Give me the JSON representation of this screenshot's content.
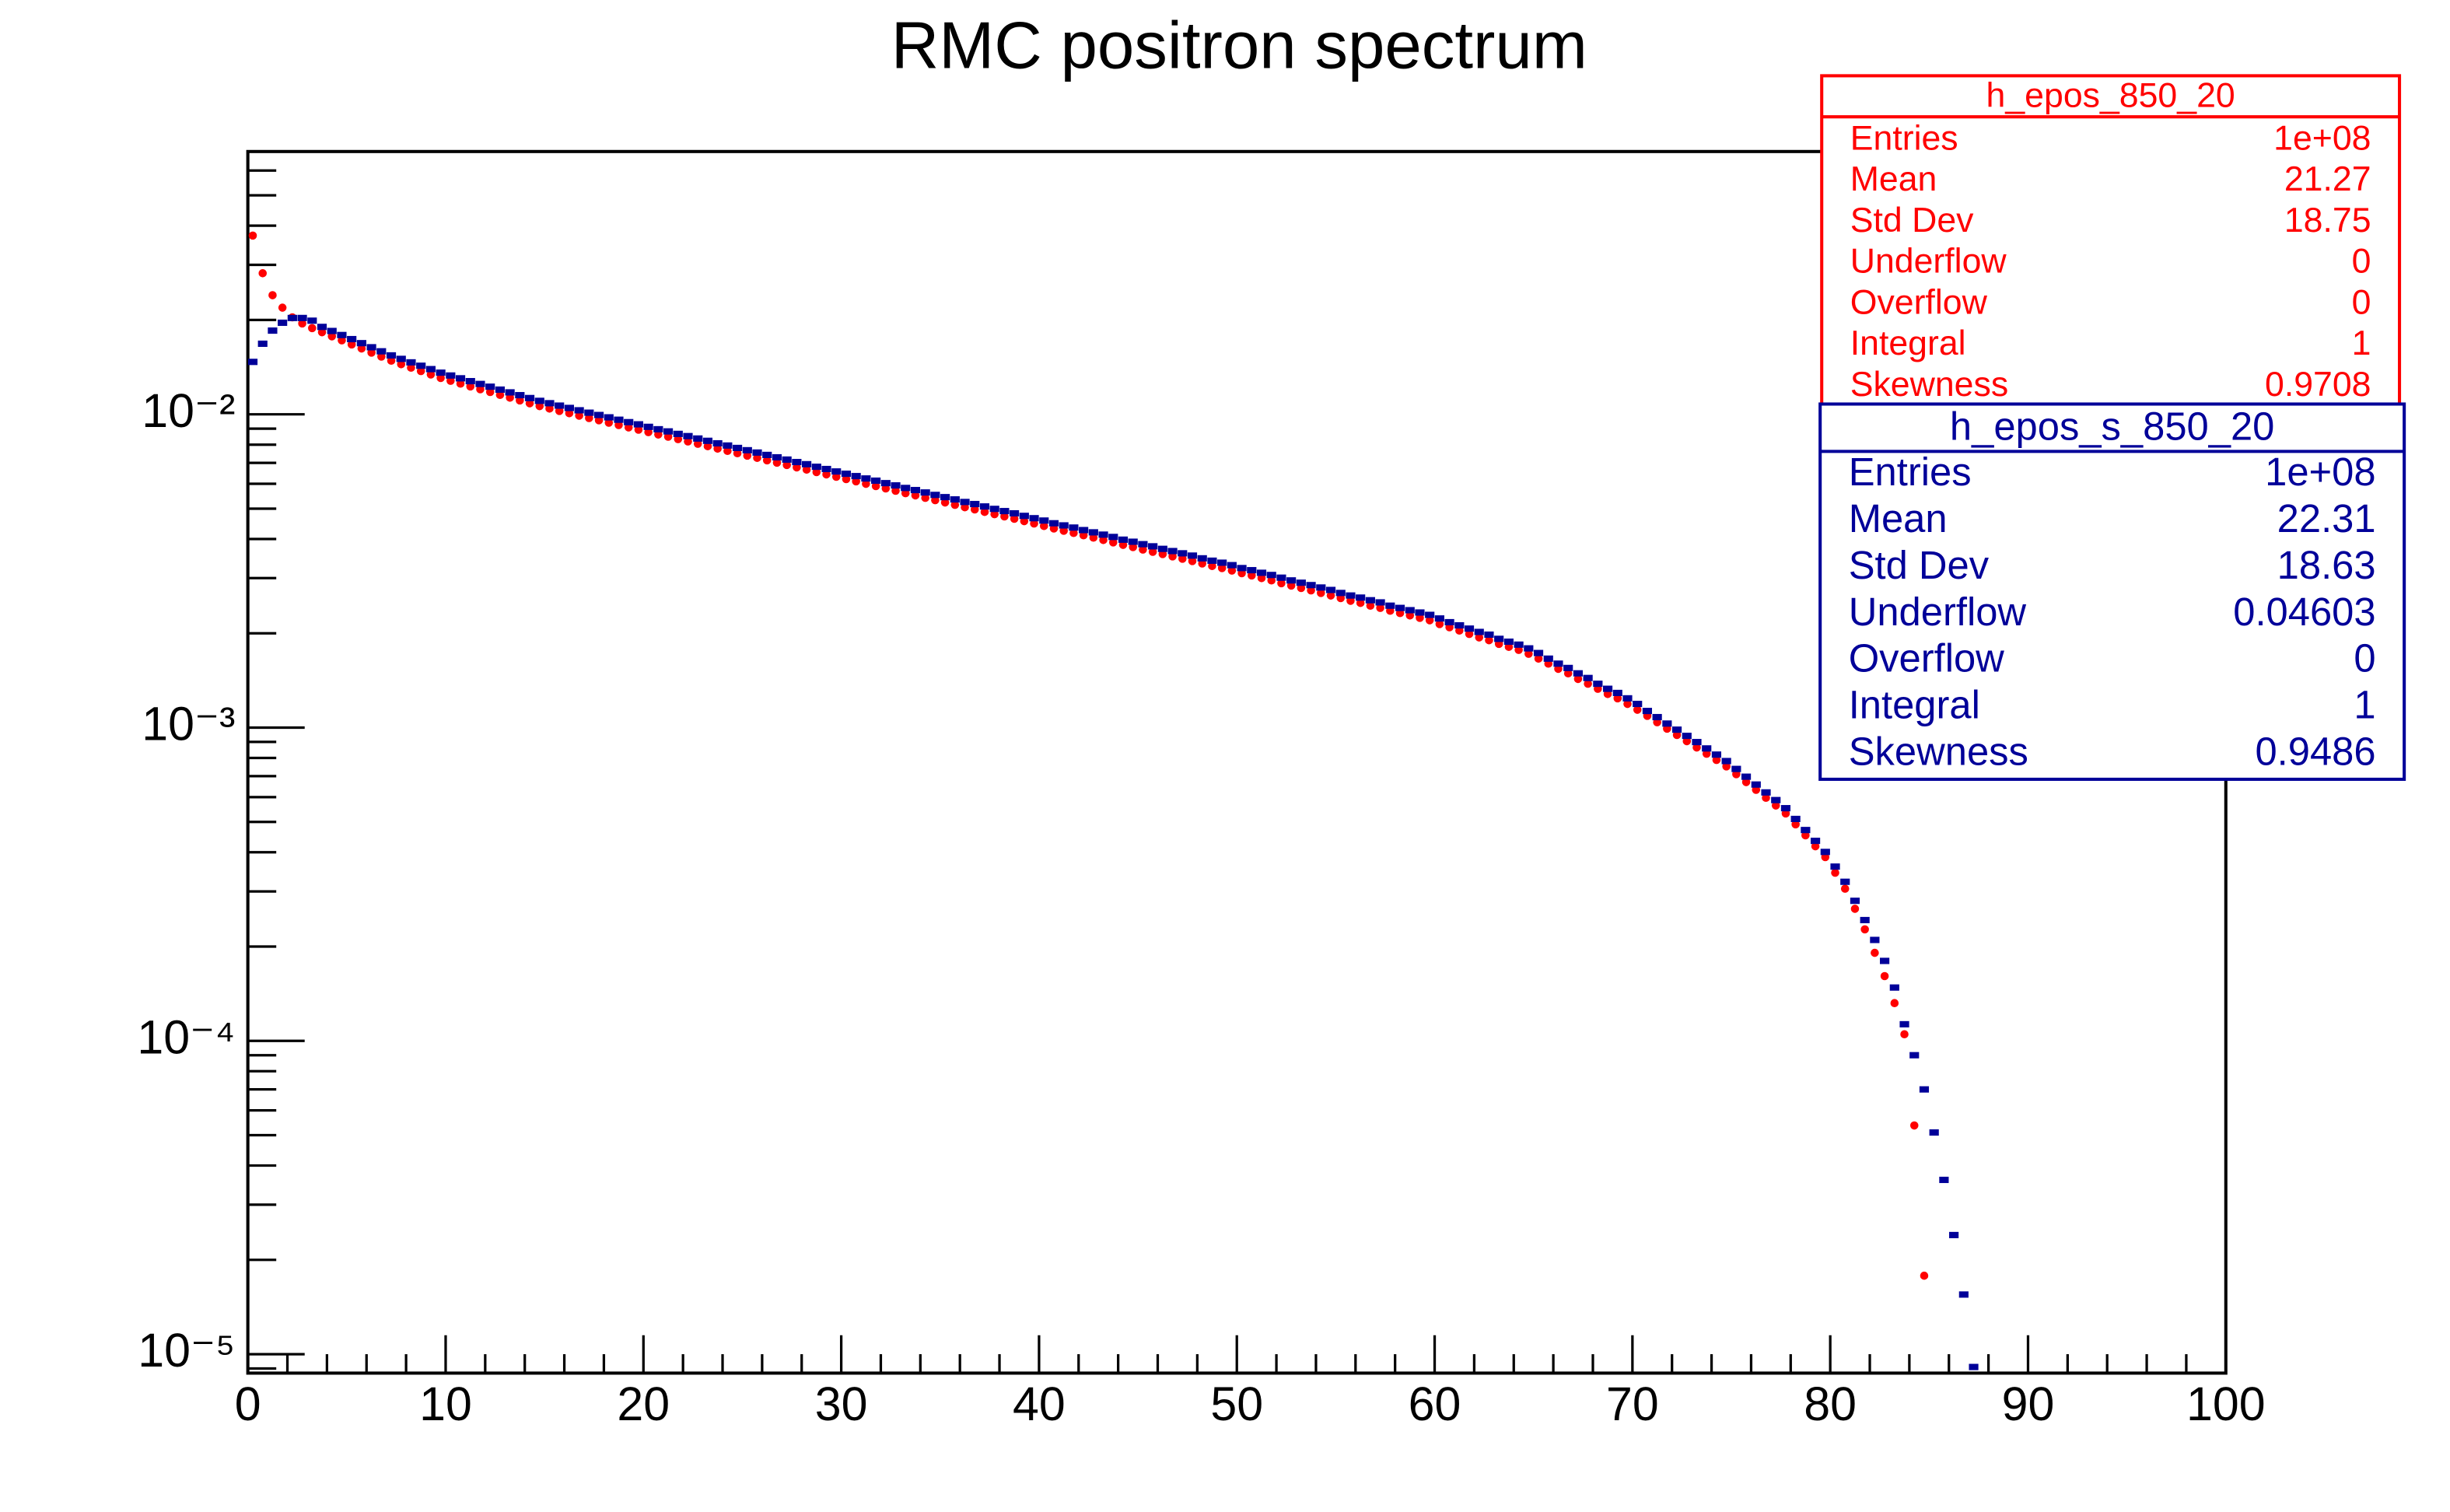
{
  "chart_data": {
    "type": "scatter",
    "title": "RMC positron spectrum",
    "log_y": true,
    "xlim": [
      0,
      100
    ],
    "xticks": [
      0,
      10,
      20,
      30,
      40,
      50,
      60,
      70,
      80,
      90,
      100
    ],
    "ylim": [
      8.7e-06,
      0.069
    ],
    "yticks": [
      {
        "value": 1e-05,
        "label": "10⁻⁵"
      },
      {
        "value": 0.0001,
        "label": "10⁻⁴"
      },
      {
        "value": 0.001,
        "label": "10⁻³"
      },
      {
        "value": 0.01,
        "label": "10⁻²"
      }
    ],
    "x": [
      0.25,
      0.75,
      1.25,
      1.75,
      2.25,
      2.75,
      3.25,
      3.75,
      4.25,
      4.75,
      5.25,
      5.75,
      6.25,
      6.75,
      7.25,
      7.75,
      8.25,
      8.75,
      9.25,
      9.75,
      10.25,
      10.75,
      11.25,
      11.75,
      12.25,
      12.75,
      13.25,
      13.75,
      14.25,
      14.75,
      15.25,
      15.75,
      16.25,
      16.75,
      17.25,
      17.75,
      18.25,
      18.75,
      19.25,
      19.75,
      20.25,
      20.75,
      21.25,
      21.75,
      22.25,
      22.75,
      23.25,
      23.75,
      24.25,
      24.75,
      25.25,
      25.75,
      26.25,
      26.75,
      27.25,
      27.75,
      28.25,
      28.75,
      29.25,
      29.75,
      30.25,
      30.75,
      31.25,
      31.75,
      32.25,
      32.75,
      33.25,
      33.75,
      34.25,
      34.75,
      35.25,
      35.75,
      36.25,
      36.75,
      37.25,
      37.75,
      38.25,
      38.75,
      39.25,
      39.75,
      40.25,
      40.75,
      41.25,
      41.75,
      42.25,
      42.75,
      43.25,
      43.75,
      44.25,
      44.75,
      45.25,
      45.75,
      46.25,
      46.75,
      47.25,
      47.75,
      48.25,
      48.75,
      49.25,
      49.75,
      50.25,
      50.75,
      51.25,
      51.75,
      52.25,
      52.75,
      53.25,
      53.75,
      54.25,
      54.75,
      55.25,
      55.75,
      56.25,
      56.75,
      57.25,
      57.75,
      58.25,
      58.75,
      59.25,
      59.75,
      60.25,
      60.75,
      61.25,
      61.75,
      62.25,
      62.75,
      63.25,
      63.75,
      64.25,
      64.75,
      65.25,
      65.75,
      66.25,
      66.75,
      67.25,
      67.75,
      68.25,
      68.75,
      69.25,
      69.75,
      70.25,
      70.75,
      71.25,
      71.75,
      72.25,
      72.75,
      73.25,
      73.75,
      74.25,
      74.75,
      75.25,
      75.75,
      76.25,
      76.75,
      77.25,
      77.75,
      78.25,
      78.75,
      79.25,
      79.75,
      80.25,
      80.75,
      81.25,
      81.75,
      82.25,
      82.75,
      83.25,
      83.75,
      84.25,
      84.75,
      85.25,
      85.75,
      86.25,
      86.75,
      87.25
    ],
    "series": [
      {
        "color": "#ff0000",
        "marker": "circle",
        "values": [
          0.0372,
          0.0282,
          0.024,
          0.0219,
          0.0204,
          0.0195,
          0.01884,
          0.01828,
          0.01774,
          0.01722,
          0.01671,
          0.01622,
          0.01574,
          0.01528,
          0.01483,
          0.01445,
          0.01409,
          0.01374,
          0.0134,
          0.01306,
          0.01279,
          0.01253,
          0.01227,
          0.01202,
          0.01178,
          0.01153,
          0.0113,
          0.01107,
          0.01084,
          0.01062,
          0.01043,
          0.01025,
          0.01008,
          0.0099,
          0.00973,
          0.00957,
          0.0094,
          0.00924,
          0.00908,
          0.00893,
          0.00877,
          0.00862,
          0.00848,
          0.00833,
          0.00819,
          0.00805,
          0.00791,
          0.00777,
          0.00764,
          0.00751,
          0.00738,
          0.00726,
          0.00713,
          0.00701,
          0.00689,
          0.00677,
          0.00666,
          0.00654,
          0.00643,
          0.00632,
          0.00621,
          0.00611,
          0.006,
          0.0059,
          0.0058,
          0.0057,
          0.0056,
          0.00551,
          0.00541,
          0.00532,
          0.00523,
          0.00514,
          0.00505,
          0.00497,
          0.00488,
          0.0048,
          0.00472,
          0.00464,
          0.00456,
          0.00448,
          0.0044,
          0.00432,
          0.00425,
          0.00418,
          0.00411,
          0.00404,
          0.00397,
          0.0039,
          0.00383,
          0.00377,
          0.0037,
          0.00364,
          0.00358,
          0.00352,
          0.00346,
          0.0034,
          0.00334,
          0.00328,
          0.00323,
          0.00317,
          0.00311,
          0.00306,
          0.003,
          0.00295,
          0.00289,
          0.00284,
          0.00279,
          0.00274,
          0.00269,
          0.00264,
          0.00259,
          0.00254,
          0.0025,
          0.00245,
          0.00241,
          0.00236,
          0.00232,
          0.00228,
          0.00224,
          0.0022,
          0.00214,
          0.00209,
          0.00204,
          0.00199,
          0.00194,
          0.0019,
          0.00185,
          0.00181,
          0.00177,
          0.00172,
          0.00166,
          0.0016,
          0.00154,
          0.00149,
          0.00143,
          0.00138,
          0.00133,
          0.00128,
          0.00124,
          0.00119,
          0.00114,
          0.00109,
          0.00104,
          0.000992,
          0.000947,
          0.000905,
          0.000864,
          0.000825,
          0.000788,
          0.000752,
          0.00071,
          0.00067,
          0.000633,
          0.000597,
          0.000564,
          0.000532,
          0.000491,
          0.000453,
          0.000418,
          0.000386,
          0.000344,
          0.000306,
          0.000264,
          0.000227,
          0.000191,
          0.000161,
          0.000132,
          0.000105,
          5.37e-05,
          1.78e-05,
          null,
          null,
          null,
          null,
          null
        ]
      },
      {
        "color": "#000099",
        "marker": "square",
        "values": [
          0.0147,
          0.0168,
          0.0185,
          0.0196,
          0.0203,
          0.0203,
          0.0199,
          0.01901,
          0.01845,
          0.01791,
          0.01738,
          0.01687,
          0.01637,
          0.01589,
          0.01542,
          0.01503,
          0.01465,
          0.01429,
          0.01394,
          0.01358,
          0.0133,
          0.01303,
          0.01276,
          0.0125,
          0.01225,
          0.01199,
          0.01175,
          0.01151,
          0.01127,
          0.01104,
          0.01085,
          0.01066,
          0.01048,
          0.0103,
          0.01012,
          0.00995,
          0.00978,
          0.00961,
          0.00944,
          0.00929,
          0.00912,
          0.00896,
          0.00882,
          0.00866,
          0.00852,
          0.00837,
          0.00823,
          0.00808,
          0.00795,
          0.00781,
          0.00768,
          0.00755,
          0.00742,
          0.00729,
          0.00717,
          0.00704,
          0.00693,
          0.0068,
          0.00669,
          0.00657,
          0.00646,
          0.00635,
          0.00624,
          0.00614,
          0.00603,
          0.00593,
          0.00582,
          0.00573,
          0.00563,
          0.00553,
          0.00544,
          0.00535,
          0.00525,
          0.00517,
          0.00508,
          0.00499,
          0.00491,
          0.00483,
          0.00474,
          0.00466,
          0.00458,
          0.00449,
          0.00442,
          0.00435,
          0.00427,
          0.0042,
          0.00413,
          0.00406,
          0.00398,
          0.00392,
          0.00385,
          0.00379,
          0.00372,
          0.00366,
          0.0036,
          0.00354,
          0.00347,
          0.00341,
          0.00336,
          0.0033,
          0.00323,
          0.00318,
          0.00312,
          0.00307,
          0.00301,
          0.00295,
          0.0029,
          0.00285,
          0.0028,
          0.00275,
          0.00269,
          0.00264,
          0.0026,
          0.00255,
          0.00251,
          0.00245,
          0.00241,
          0.00237,
          0.00233,
          0.00229,
          0.00223,
          0.00217,
          0.00212,
          0.00207,
          0.00202,
          0.00198,
          0.00192,
          0.00188,
          0.00184,
          0.00179,
          0.00173,
          0.00166,
          0.0016,
          0.00155,
          0.00149,
          0.00144,
          0.00138,
          0.00133,
          0.00129,
          0.00124,
          0.00119,
          0.00113,
          0.00108,
          0.00103,
          0.000985,
          0.000941,
          0.000899,
          0.000858,
          0.00082,
          0.000782,
          0.000738,
          0.000697,
          0.000658,
          0.000621,
          0.000587,
          0.000553,
          0.000511,
          0.000471,
          0.000435,
          0.000401,
          0.00036,
          0.000322,
          0.00028,
          0.000243,
          0.00021,
          0.00018,
          0.000148,
          0.000113,
          9e-05,
          7e-05,
          5.1e-05,
          3.6e-05,
          2.4e-05,
          1.55e-05,
          9.1e-06
        ]
      }
    ],
    "stat_boxes": [
      {
        "title": "h_epos_850_20",
        "color": "#ff0000",
        "rows": [
          [
            "Entries",
            "1e+08"
          ],
          [
            "Mean",
            "21.27"
          ],
          [
            "Std Dev",
            "18.75"
          ],
          [
            "Underflow",
            "0"
          ],
          [
            "Overflow",
            "0"
          ],
          [
            "Integral",
            "1"
          ],
          [
            "Skewness",
            "0.9708"
          ]
        ]
      },
      {
        "title": "h_epos_s_850_20",
        "color": "#000099",
        "rows": [
          [
            "Entries",
            "1e+08"
          ],
          [
            "Mean",
            "22.31"
          ],
          [
            "Std Dev",
            "18.63"
          ],
          [
            "Underflow",
            "0.04603"
          ],
          [
            "Overflow",
            "0"
          ],
          [
            "Integral",
            "1"
          ],
          [
            "Skewness",
            "0.9486"
          ]
        ]
      }
    ]
  }
}
